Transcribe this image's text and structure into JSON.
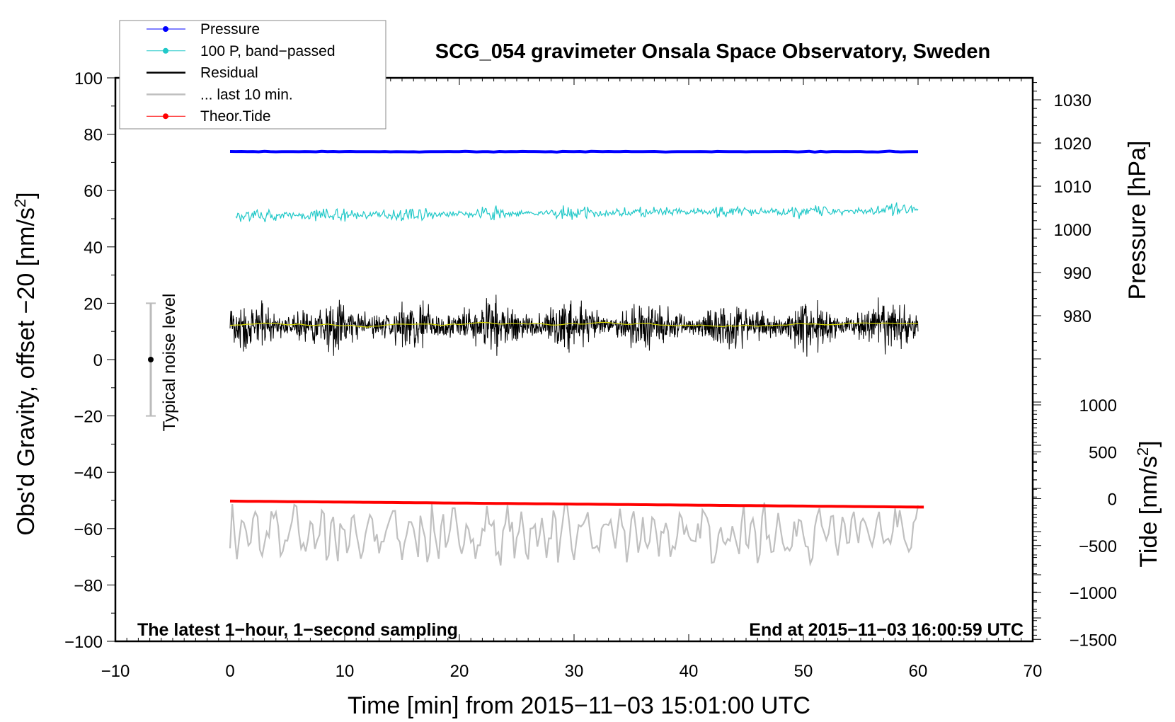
{
  "chart_data": {
    "type": "line",
    "title": "SCG_054 gravimeter Onsala Space Observatory, Sweden",
    "xlabel": "Time [min] from 2015−11−03 15:01:00 UTC",
    "ylabel": {
      "main": "Obs'd Gravity, offset −20 [nm/s",
      "sup": "2",
      "end": "]"
    },
    "ylabel_right_pressure": "Pressure [hPa]",
    "ylabel_right_tide": {
      "main": "Tide [nm/s",
      "sup": "2",
      "end": "]"
    },
    "annotation_left": "The latest 1−hour, 1−second sampling",
    "annotation_right": "End at 2015−11−03 16:00:59 UTC",
    "noise_label": "Typical noise level",
    "noise_bar": {
      "center": 0,
      "low": -20,
      "high": 20
    },
    "xlim": [
      -10,
      70
    ],
    "ylim": [
      -100,
      100
    ],
    "x_ticks": [
      "−10",
      "0",
      "10",
      "20",
      "30",
      "40",
      "50",
      "60",
      "70"
    ],
    "y_ticks": [
      "100",
      "80",
      "60",
      "40",
      "20",
      "0",
      "−20",
      "−40",
      "−60",
      "−80",
      "−100"
    ],
    "pressure_ticks": [
      "1030",
      "1020",
      "1010",
      "1000",
      "990",
      "980"
    ],
    "tide_ticks": [
      "1000",
      "500",
      "0",
      "−500",
      "−1000",
      "−1500"
    ],
    "legend": {
      "placement": "top-left",
      "items": [
        {
          "label": "Pressure",
          "color": "#0000ff",
          "marker": true
        },
        {
          "label": "100 P, band−passed",
          "color": "#20c8c8",
          "marker": true
        },
        {
          "label": "Residual",
          "color": "#000000",
          "marker": false
        },
        {
          "label": "... last 10 min.",
          "color": "#c0c0c0",
          "marker": false
        },
        {
          "label": "Theor.Tide",
          "color": "#ff0000",
          "marker": true
        }
      ]
    },
    "series": [
      {
        "name": "Pressure",
        "axis": "pressure_hPa",
        "x_range": [
          0,
          60
        ],
        "start": 1018.0,
        "end": 1018.0,
        "noise": 0.1,
        "color": "#0000ff"
      },
      {
        "name": "100 P, band-passed",
        "axis": "gravity",
        "x_range": [
          0.5,
          60
        ],
        "start": 51,
        "end": 53,
        "noise": 2.5,
        "color": "#20c8c8"
      },
      {
        "name": "Residual",
        "axis": "gravity",
        "x_range": [
          0,
          60
        ],
        "start": 12,
        "end": 12,
        "noise": 9,
        "color": "#000000"
      },
      {
        "name": "Residual smoothed",
        "axis": "gravity",
        "x_range": [
          0,
          60
        ],
        "start": 12,
        "end": 13,
        "noise": 0.8,
        "color": "#d8d800"
      },
      {
        "name": "... last 10 min.",
        "axis": "gravity",
        "x_range": [
          0,
          60
        ],
        "start": -62,
        "end": -62,
        "noise": 11,
        "color": "#c0c0c0"
      },
      {
        "name": "Theor.Tide",
        "axis": "tide_nm_s2",
        "x_range": [
          0,
          60.5
        ],
        "start": -26,
        "end": -90,
        "noise": 0,
        "color": "#ff0000"
      }
    ]
  }
}
